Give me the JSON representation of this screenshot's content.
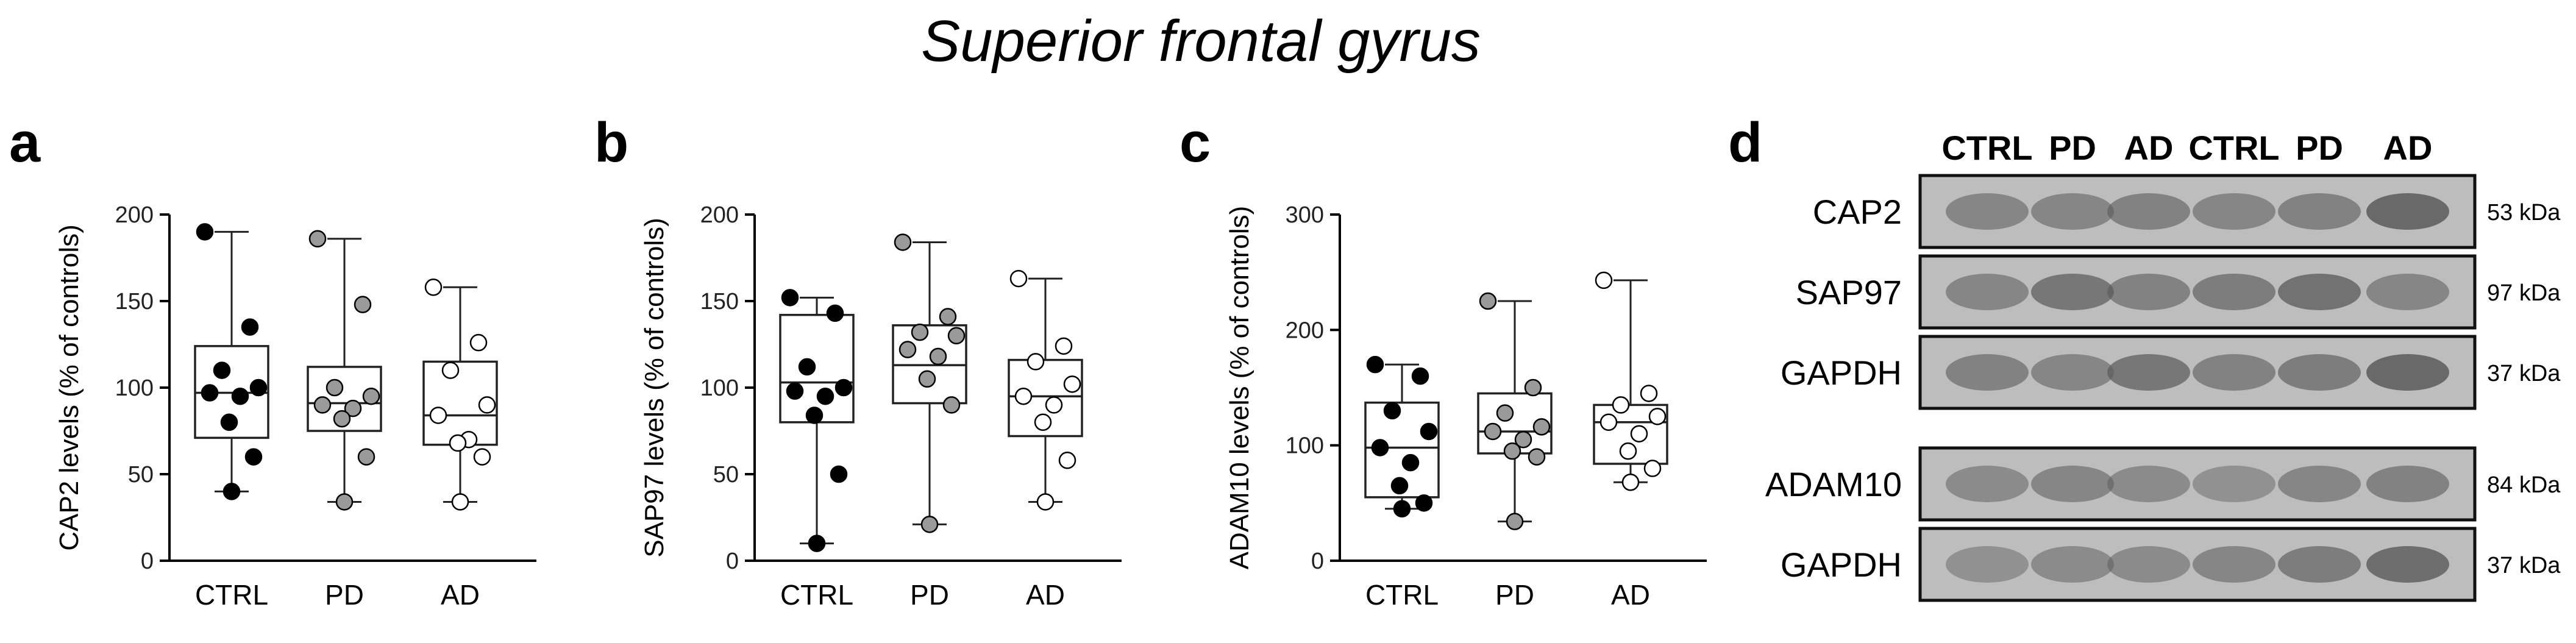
{
  "figure_title": "Superior frontal gyrus",
  "colors": {
    "CTRL": "#000000",
    "PD": "#9a9a9a",
    "AD": "#ffffff",
    "ink": "#000000",
    "box_stroke": "#222222",
    "whisker": "#222222"
  },
  "panels": [
    {
      "letter": "a"
    },
    {
      "letter": "b"
    },
    {
      "letter": "c"
    },
    {
      "letter": "d"
    }
  ],
  "chart_data": [
    {
      "type": "box",
      "panel": "a",
      "title": "",
      "ylabel": "CAP2 levels (% of controls)",
      "xlabel": "",
      "ylim": [
        0,
        200
      ],
      "yticks": [
        0,
        50,
        100,
        150,
        200
      ],
      "categories": [
        "CTRL",
        "PD",
        "AD"
      ],
      "boxes": [
        {
          "name": "CTRL",
          "min": 40,
          "q1": 71,
          "median": 97,
          "q3": 124,
          "max": 190,
          "points": [
            190,
            135,
            110,
            100,
            97,
            95,
            80,
            60,
            40
          ]
        },
        {
          "name": "PD",
          "min": 34,
          "q1": 75,
          "median": 91,
          "q3": 112,
          "max": 186,
          "points": [
            186,
            148,
            100,
            95,
            90,
            88,
            82,
            60,
            34
          ]
        },
        {
          "name": "AD",
          "min": 34,
          "q1": 67,
          "median": 84,
          "q3": 115,
          "max": 158,
          "points": [
            158,
            126,
            110,
            90,
            84,
            70,
            68,
            60,
            34
          ]
        }
      ],
      "grid": false
    },
    {
      "type": "box",
      "panel": "b",
      "title": "",
      "ylabel": "SAP97 levels (% of controls)",
      "xlabel": "",
      "ylim": [
        0,
        200
      ],
      "yticks": [
        0,
        50,
        100,
        150,
        200
      ],
      "categories": [
        "CTRL",
        "PD",
        "AD"
      ],
      "boxes": [
        {
          "name": "CTRL",
          "min": 10,
          "q1": 80,
          "median": 103,
          "q3": 142,
          "max": 152,
          "points": [
            152,
            143,
            112,
            100,
            98,
            95,
            84,
            50,
            10
          ]
        },
        {
          "name": "PD",
          "min": 21,
          "q1": 91,
          "median": 113,
          "q3": 136,
          "max": 184,
          "points": [
            184,
            141,
            132,
            130,
            122,
            118,
            105,
            90,
            21
          ]
        },
        {
          "name": "AD",
          "min": 34,
          "q1": 72,
          "median": 95,
          "q3": 116,
          "max": 163,
          "points": [
            163,
            124,
            115,
            102,
            95,
            90,
            80,
            58,
            34
          ]
        }
      ],
      "grid": false
    },
    {
      "type": "box",
      "panel": "c",
      "title": "",
      "ylabel": "ADAM10 levels (% of controls)",
      "xlabel": "",
      "ylim": [
        0,
        300
      ],
      "yticks": [
        0,
        100,
        200,
        300
      ],
      "categories": [
        "CTRL",
        "PD",
        "AD"
      ],
      "boxes": [
        {
          "name": "CTRL",
          "min": 45,
          "q1": 55,
          "median": 98,
          "q3": 137,
          "max": 170,
          "points": [
            170,
            160,
            130,
            112,
            98,
            85,
            65,
            50,
            45
          ]
        },
        {
          "name": "PD",
          "min": 34,
          "q1": 93,
          "median": 112,
          "q3": 145,
          "max": 225,
          "points": [
            225,
            150,
            128,
            116,
            112,
            105,
            95,
            90,
            34
          ]
        },
        {
          "name": "AD",
          "min": 68,
          "q1": 84,
          "median": 120,
          "q3": 135,
          "max": 243,
          "points": [
            243,
            145,
            135,
            125,
            120,
            110,
            95,
            80,
            68
          ]
        }
      ],
      "grid": false
    },
    {
      "type": "western_blot",
      "panel": "d",
      "lanes": [
        "CTRL",
        "PD",
        "AD",
        "CTRL",
        "PD",
        "AD"
      ],
      "rows": [
        {
          "protein": "CAP2",
          "mw": "53 kDa"
        },
        {
          "protein": "SAP97",
          "mw": "97 kDa"
        },
        {
          "protein": "GAPDH",
          "mw": "37 kDa"
        },
        {
          "protein": "ADAM10",
          "mw": "84 kDa"
        },
        {
          "protein": "GAPDH",
          "mw": "37 kDa"
        }
      ]
    }
  ]
}
